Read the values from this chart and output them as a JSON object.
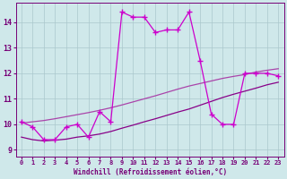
{
  "xlabel": "Windchill (Refroidissement éolien,°C)",
  "bg_color": "#cfe8ea",
  "grid_color": "#aac8cc",
  "line_jagged_color": "#cc00cc",
  "line_low_color": "#880088",
  "line_high_color": "#aa44aa",
  "xlim": [
    -0.5,
    23.5
  ],
  "ylim": [
    8.75,
    14.75
  ],
  "yticks": [
    9,
    10,
    11,
    12,
    13,
    14
  ],
  "xticks": [
    0,
    1,
    2,
    3,
    4,
    5,
    6,
    7,
    8,
    9,
    10,
    11,
    12,
    13,
    14,
    15,
    16,
    17,
    18,
    19,
    20,
    21,
    22,
    23
  ],
  "jagged_x": [
    0,
    1,
    2,
    3,
    4,
    5,
    6,
    7,
    8,
    9,
    10,
    11,
    12,
    13,
    14,
    15,
    16,
    17,
    18,
    19,
    20,
    21,
    22,
    23
  ],
  "jagged_y": [
    10.1,
    9.9,
    9.4,
    9.4,
    9.9,
    10.0,
    9.5,
    10.5,
    10.1,
    14.4,
    14.2,
    14.2,
    13.6,
    13.7,
    13.7,
    14.4,
    12.5,
    10.4,
    10.0,
    10.0,
    12.0,
    12.0,
    12.0,
    11.9
  ],
  "low_x": [
    0,
    1,
    2,
    3,
    4,
    5,
    6,
    7,
    8,
    9,
    10,
    11,
    12,
    13,
    14,
    15,
    16,
    17,
    18,
    19,
    20,
    21,
    22,
    23
  ],
  "low_y": [
    9.5,
    9.4,
    9.35,
    9.38,
    9.42,
    9.5,
    9.55,
    9.62,
    9.72,
    9.85,
    9.97,
    10.1,
    10.22,
    10.35,
    10.48,
    10.6,
    10.75,
    10.9,
    11.05,
    11.18,
    11.3,
    11.42,
    11.55,
    11.65
  ],
  "high_x": [
    0,
    1,
    2,
    3,
    4,
    5,
    6,
    7,
    8,
    9,
    10,
    11,
    12,
    13,
    14,
    15,
    16,
    17,
    18,
    19,
    20,
    21,
    22,
    23
  ],
  "high_y": [
    10.05,
    10.1,
    10.15,
    10.22,
    10.3,
    10.38,
    10.46,
    10.55,
    10.65,
    10.76,
    10.88,
    11.0,
    11.12,
    11.25,
    11.38,
    11.5,
    11.6,
    11.7,
    11.8,
    11.88,
    11.95,
    12.05,
    12.12,
    12.18
  ]
}
